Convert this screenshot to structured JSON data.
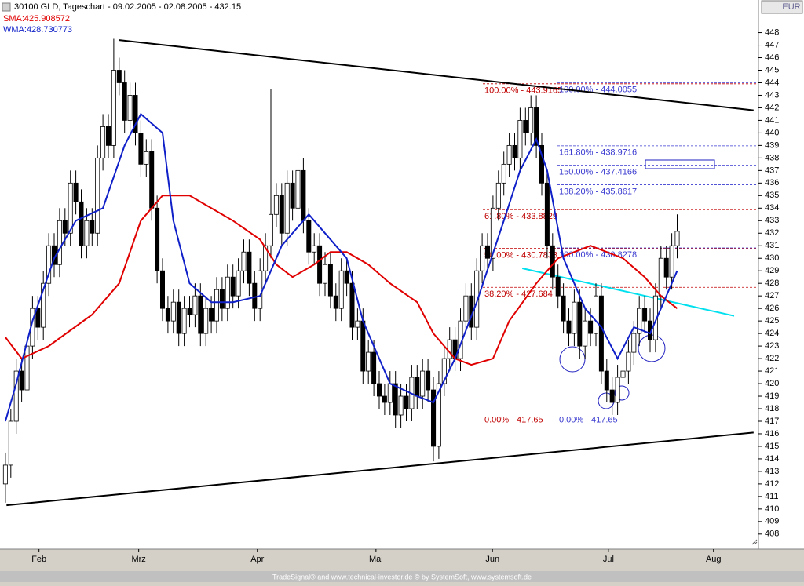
{
  "window": {
    "title": "30100 GLD, Tageschart - 09.02.2005 - 02.08.2005 - 432.15",
    "currency": "EUR",
    "footer": "TradeSignal® and www.technical-investor.de © by SystemSoft, www.systemsoft.de"
  },
  "chart_data": {
    "type": "candlestick",
    "x": [
      0,
      1,
      2,
      3,
      4,
      5,
      6,
      7,
      8,
      9,
      10,
      11,
      12,
      13,
      14,
      15,
      16,
      17,
      18,
      19,
      20,
      21,
      22,
      23,
      24,
      25,
      26,
      27,
      28,
      29,
      30,
      31,
      32,
      33,
      34,
      35,
      36,
      37,
      38,
      39,
      40,
      41,
      42,
      43,
      44,
      45,
      46,
      47,
      48,
      49,
      50,
      51,
      52,
      53,
      54,
      55,
      56,
      57,
      58,
      59,
      60,
      61,
      62,
      63,
      64,
      65,
      66,
      67,
      68,
      69,
      70,
      71,
      72,
      73,
      74,
      75,
      76,
      77,
      78,
      79,
      80,
      81,
      82,
      83,
      84,
      85,
      86,
      87,
      88,
      89,
      90,
      91,
      92,
      93,
      94,
      95,
      96,
      97,
      98,
      99,
      100,
      101,
      102,
      103,
      104,
      105,
      106,
      107,
      108,
      109,
      110,
      111,
      112,
      113,
      114,
      115,
      116,
      117,
      118,
      119,
      120,
      121,
      122,
      123,
      124
    ],
    "open": [
      412,
      413.5,
      417,
      421,
      419.5,
      423,
      426,
      424.5,
      428,
      431,
      429.5,
      433,
      432,
      436,
      434.5,
      431,
      433,
      432,
      438,
      440.5,
      439,
      445,
      444,
      441,
      443,
      440,
      437.5,
      438.5,
      434,
      429,
      426,
      425,
      426.5,
      424,
      426,
      425.5,
      427,
      424,
      426,
      425,
      427.5,
      426,
      428.5,
      427,
      429,
      430.5,
      428,
      426,
      429,
      431,
      433.5,
      435,
      432,
      436,
      434,
      437,
      433,
      430.5,
      431,
      428,
      429.5,
      427,
      426,
      429,
      428,
      424.5,
      425,
      421,
      422.5,
      420,
      419,
      418.5,
      420,
      417.5,
      419,
      418,
      420.5,
      419,
      421,
      419.5,
      415,
      420,
      422,
      423.5,
      422,
      425,
      427,
      424.5,
      429,
      431,
      430,
      434,
      436,
      437.5,
      439,
      438,
      441,
      440,
      442,
      439,
      436,
      431,
      428.5,
      427,
      425,
      424,
      426.5,
      423,
      425,
      424,
      427,
      421,
      419.5,
      418.5,
      420.5,
      421,
      422.5,
      424,
      426,
      425,
      423.5,
      427,
      430,
      428.5,
      431
    ],
    "high": [
      414.5,
      418,
      422,
      422,
      424,
      427,
      427,
      429,
      432,
      432,
      434,
      434,
      437,
      437,
      435.5,
      434,
      434,
      439,
      441.5,
      441.5,
      447.5,
      446,
      445,
      444,
      444,
      441,
      439.5,
      439.5,
      435,
      430,
      427,
      427.5,
      427.5,
      427,
      427,
      428,
      428,
      427,
      427,
      428.5,
      428.5,
      429.5,
      429.5,
      430,
      431.5,
      431.5,
      429,
      430,
      432,
      443.5,
      436,
      436,
      437,
      437,
      438,
      438,
      434,
      432,
      432,
      430.5,
      430.5,
      428,
      430,
      430,
      429,
      426,
      426,
      423.5,
      423.5,
      421,
      420,
      421,
      421,
      420,
      420,
      421.5,
      421.5,
      422,
      422,
      420.5,
      421,
      423,
      424.5,
      424.5,
      426,
      428,
      428,
      430,
      432,
      432,
      435,
      437,
      438.5,
      440,
      440,
      442,
      442,
      443,
      443,
      440,
      437,
      432,
      429.5,
      428,
      426,
      427.5,
      427.5,
      426,
      426,
      428,
      428,
      422,
      420.5,
      421.5,
      422,
      423.5,
      425,
      427,
      427,
      426,
      428,
      431,
      431,
      432,
      433.5
    ],
    "low": [
      410.5,
      412.5,
      416,
      418.5,
      418.5,
      422,
      423.5,
      423.5,
      427,
      428.5,
      428.5,
      431,
      431,
      433.5,
      430,
      430,
      431,
      431,
      437,
      438,
      438,
      443,
      440,
      440,
      439,
      436.5,
      436.5,
      433,
      428,
      425,
      424,
      424,
      423,
      423,
      424.5,
      424.5,
      423,
      423,
      424,
      424,
      425,
      425,
      426,
      426,
      428,
      427,
      425,
      425,
      428,
      430,
      432.5,
      431,
      431,
      433,
      433,
      432,
      429.5,
      429.5,
      427,
      427,
      426,
      425,
      425,
      427,
      423.5,
      423.5,
      420,
      420,
      419,
      418,
      417.5,
      417.5,
      416.5,
      416.5,
      417,
      417,
      418,
      418,
      418.5,
      413.8,
      414,
      419,
      421,
      421,
      421,
      424,
      423.5,
      423.5,
      428,
      429,
      429,
      433,
      435,
      436.5,
      437,
      437,
      439,
      439,
      438,
      435,
      430,
      427.5,
      426,
      424,
      423,
      423,
      422,
      422,
      423,
      423,
      420,
      418.5,
      417.5,
      417.5,
      419.5,
      420,
      421.5,
      423,
      424,
      422.5,
      422.5,
      426,
      427.5,
      427.5,
      430
    ],
    "close": [
      413.5,
      417,
      421,
      419.5,
      423,
      426,
      424.5,
      428,
      431,
      429.5,
      433,
      432,
      436,
      434.5,
      431,
      433,
      432,
      438,
      440.5,
      439,
      445,
      444,
      441,
      443,
      440,
      437.5,
      438.5,
      434,
      429,
      426,
      425,
      426.5,
      424,
      426,
      425.5,
      427,
      424,
      426,
      425,
      427.5,
      426,
      428.5,
      427,
      429,
      430.5,
      428,
      426,
      429,
      431,
      433.5,
      435,
      432,
      436,
      434,
      437,
      433,
      430.5,
      431,
      428,
      429.5,
      427,
      426,
      429,
      428,
      424.5,
      425,
      421,
      422.5,
      420,
      419,
      418.5,
      420,
      417.5,
      419,
      418,
      420.5,
      419,
      421,
      419.5,
      415,
      420,
      422,
      423.5,
      422,
      425,
      427,
      424.5,
      429,
      431,
      430,
      434,
      436,
      437.5,
      439,
      438,
      441,
      440,
      442,
      439,
      436,
      431,
      428.5,
      427,
      425,
      424,
      426.5,
      423,
      425,
      424,
      427,
      421,
      419.5,
      418.5,
      420.5,
      421,
      422.5,
      424,
      426,
      425,
      423.5,
      427,
      430,
      428.5,
      431,
      432.15
    ],
    "up_color": "#ffffff",
    "down_color": "#000000",
    "series": [
      {
        "name": "SMA:425.908572",
        "color": "#e00000",
        "x": [
          0,
          3,
          8,
          16,
          21,
          25,
          29,
          34,
          38,
          42,
          47,
          50,
          53,
          57,
          60,
          63,
          67,
          71,
          76,
          79,
          83,
          86,
          90,
          93,
          98,
          102,
          108,
          114,
          118,
          121,
          124
        ],
        "values": [
          423.7,
          422,
          423,
          425.5,
          428,
          433,
          435,
          435,
          434,
          433,
          431.5,
          429.5,
          428.5,
          429.5,
          430.5,
          430.5,
          429.5,
          428,
          426.5,
          424,
          422,
          421.5,
          422,
          425,
          428,
          430,
          431,
          430,
          428.5,
          427,
          426
        ]
      },
      {
        "name": "WMA:428.730773",
        "color": "#1020c8",
        "x": [
          0,
          2,
          5,
          9,
          13,
          18,
          22,
          25,
          29,
          31,
          34,
          38,
          42,
          47,
          51,
          56,
          59,
          63,
          66,
          69,
          71,
          76,
          79,
          83,
          87,
          92,
          95,
          98,
          100,
          103,
          107,
          110,
          113,
          116,
          119,
          121,
          124
        ],
        "values": [
          417,
          420,
          425,
          430,
          433,
          434,
          439,
          441.5,
          440,
          433,
          428,
          426.5,
          426.5,
          427,
          431,
          433.5,
          432,
          430,
          425,
          422,
          420,
          419,
          418.5,
          422,
          426.5,
          433,
          437,
          439.5,
          437,
          430,
          426,
          424.5,
          422,
          424.5,
          424,
          426,
          429
        ]
      }
    ],
    "trendlines": [
      {
        "color": "#000000",
        "x": [
          21,
          138.1
        ],
        "values": [
          447.4,
          441.8
        ]
      },
      {
        "color": "#000000",
        "x": [
          0.2,
          138.1
        ],
        "values": [
          410.3,
          416.1
        ]
      },
      {
        "color": "#00e0ee",
        "x": [
          95.4,
          134.5
        ],
        "values": [
          429.2,
          425.4
        ]
      }
    ],
    "fib_sets": [
      {
        "color": "#c00000",
        "levels": [
          {
            "value": 443.9165,
            "label": "100.00% - 443.9165"
          },
          {
            "value": 433.8829,
            "label": "61.80% - 433.8829"
          },
          {
            "value": 430.7833,
            "label": "50.00% - 430.7833"
          },
          {
            "value": 427.684,
            "label": "38.20% - 427.684"
          },
          {
            "value": 417.65,
            "label": "0.00% - 417.65"
          }
        ]
      },
      {
        "color": "#3a3ad0",
        "levels": [
          {
            "value": 444.0055,
            "label": "100.00% - 444.0055"
          },
          {
            "value": 438.9716,
            "label": "161.80% - 438.9716"
          },
          {
            "value": 437.4166,
            "label": "150.00% - 437.4166"
          },
          {
            "value": 435.8617,
            "label": "138.20% - 435.8617"
          },
          {
            "value": 430.8278,
            "label": "100.00% - 430.8278"
          },
          {
            "value": 417.65,
            "label": "0.00% - 417.65"
          }
        ]
      }
    ],
    "xlim": [
      -1,
      139
    ],
    "ylim": [
      406.8,
      450.6
    ],
    "xticks": [
      {
        "value": 6.2,
        "label": "Feb"
      },
      {
        "value": 24.6,
        "label": "Mrz"
      },
      {
        "value": 46.5,
        "label": "Apr"
      },
      {
        "value": 68.4,
        "label": "Mai"
      },
      {
        "value": 89.9,
        "label": "Jun"
      },
      {
        "value": 111.3,
        "label": "Jul"
      },
      {
        "value": 130.7,
        "label": "Aug"
      }
    ],
    "yticks": [
      408,
      409,
      410,
      411,
      412,
      413,
      414,
      415,
      416,
      417,
      418,
      419,
      420,
      421,
      422,
      423,
      424,
      425,
      426,
      427,
      428,
      429,
      430,
      431,
      432,
      433,
      434,
      435,
      436,
      437,
      438,
      439,
      440,
      441,
      442,
      443,
      444,
      445,
      446,
      447,
      448
    ],
    "grid": false
  }
}
